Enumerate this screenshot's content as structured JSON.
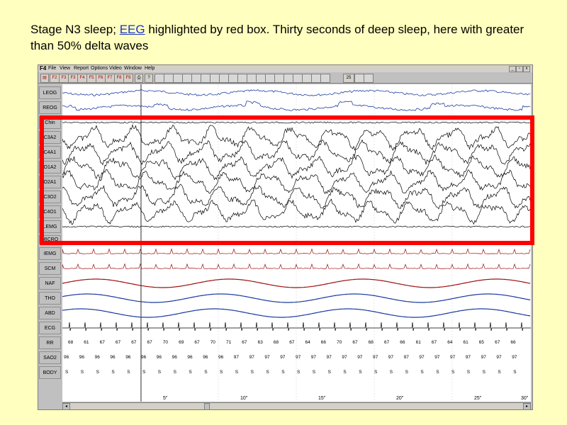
{
  "caption": {
    "part1": "Stage N3 sleep; ",
    "link": "EEG",
    "part2": " highlighted  by red box. Thirty seconds of deep sleep, here with greater than 50% delta waves"
  },
  "app": {
    "title": "F4",
    "menu": [
      "File",
      "View",
      "Report",
      "Options",
      "Video",
      "Window",
      "Help"
    ],
    "toolbar": [
      "F2",
      "F3",
      "F3",
      "F4",
      "F5",
      "F6",
      "F7",
      "F8",
      "F9"
    ],
    "toolbar_right": [
      "25"
    ]
  },
  "channels": [
    "LEOG",
    "REOG",
    "Chin",
    "C3A2",
    "C4A1",
    "O1A2",
    "O2A1",
    "C3O2",
    "C4O1",
    "LEMG",
    "MICRO",
    "IEMG",
    "SCM",
    "NAF",
    "THO",
    "ABD",
    "ECG",
    "RR",
    "SAO2",
    "BODY"
  ],
  "time_axis": [
    "5\"",
    "10\"",
    "15\"",
    "20\"",
    "25\"",
    "30\""
  ],
  "rr_values": [
    "68",
    "61",
    "67",
    "67",
    "67",
    "67",
    "70",
    "69",
    "67",
    "70",
    "71",
    "67",
    "63",
    "68",
    "67",
    "64",
    "66",
    "70",
    "67",
    "68",
    "67",
    "66",
    "61",
    "67",
    "64",
    "61",
    "65",
    "67",
    "66"
  ],
  "sao2_values": [
    "96",
    "96",
    "96",
    "96",
    "96",
    "96",
    "96",
    "96",
    "96",
    "96",
    "96",
    "97",
    "97",
    "97",
    "97",
    "97",
    "97",
    "97",
    "97",
    "97",
    "97",
    "97",
    "97",
    "97",
    "97",
    "97",
    "97",
    "97",
    "97",
    "97"
  ],
  "body_values": [
    "S",
    "S",
    "S",
    "S",
    "S",
    "S",
    "S",
    "S",
    "S",
    "S",
    "S",
    "S",
    "S",
    "S",
    "S",
    "S",
    "S",
    "S",
    "S",
    "S",
    "S",
    "S",
    "S",
    "S",
    "S",
    "S",
    "S",
    "S",
    "S",
    "S"
  ],
  "colors": {
    "eeg": "#000000",
    "eog": "#1f3fa0",
    "emg": "#a01010",
    "resp": "#a01010",
    "resp_blue": "#1a3aa0",
    "highlight": "#ff0000",
    "background": "#ffffc0"
  }
}
